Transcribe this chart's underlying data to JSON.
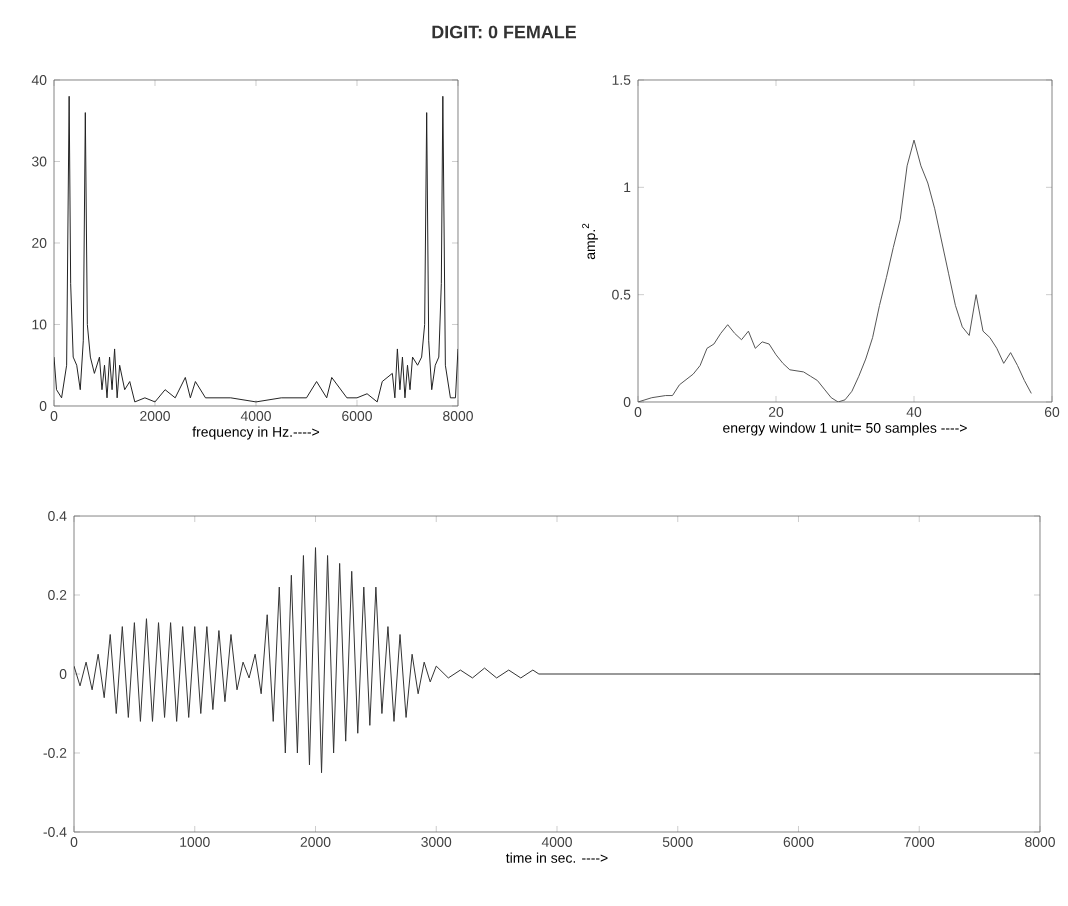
{
  "chart_data": [
    {
      "type": "other",
      "title": "DIGIT:  0    FEMALE"
    },
    {
      "type": "line",
      "xlabel": "frequency in Hz.---->",
      "xlim": [
        0,
        8000
      ],
      "ylim": [
        0,
        40
      ],
      "xticks": [
        0,
        2000,
        4000,
        6000,
        8000
      ],
      "yticks": [
        0,
        10,
        20,
        30,
        40
      ],
      "series": [
        {
          "color": "#222222",
          "x": [
            0,
            50,
            150,
            250,
            300,
            330,
            380,
            450,
            520,
            580,
            620,
            660,
            720,
            800,
            900,
            950,
            1000,
            1050,
            1100,
            1150,
            1200,
            1250,
            1300,
            1400,
            1500,
            1600,
            1800,
            2000,
            2200,
            2400,
            2600,
            2700,
            2800,
            3000,
            3500,
            4000,
            4500,
            5000,
            5200,
            5400,
            5500,
            5800,
            6000,
            6200,
            6400,
            6500,
            6700,
            6750,
            6800,
            6850,
            6900,
            6950,
            7000,
            7050,
            7100,
            7200,
            7280,
            7340,
            7380,
            7420,
            7480,
            7550,
            7620,
            7670,
            7700,
            7750,
            7850,
            7950,
            8000
          ],
          "values": [
            6,
            2,
            1,
            5,
            38,
            15,
            6,
            5,
            2,
            8,
            36,
            10,
            6,
            4,
            6,
            2,
            5,
            1,
            6,
            2,
            7,
            1,
            5,
            2,
            3,
            0.5,
            1,
            0.5,
            2,
            1,
            3.5,
            1,
            3,
            1,
            1,
            0.5,
            1,
            1,
            3,
            1,
            3.5,
            1,
            1,
            1.5,
            0.5,
            3,
            4,
            1,
            7,
            2,
            6,
            1,
            5,
            2,
            6,
            5,
            6,
            10,
            36,
            8,
            2,
            5,
            6,
            15,
            38,
            5,
            1,
            1,
            7
          ]
        }
      ]
    },
    {
      "type": "line",
      "xlabel": "energy window 1 unit= 50 samples ---->",
      "ylabel": "amp.$^{2}$",
      "xlim": [
        0,
        60
      ],
      "ylim": [
        0,
        1.5
      ],
      "xticks": [
        0,
        20,
        40,
        60
      ],
      "yticks": [
        0,
        0.5,
        1,
        1.5
      ],
      "series": [
        {
          "color": "#555555",
          "x": [
            0,
            2,
            4,
            5,
            6,
            8,
            9,
            10,
            11,
            12,
            13,
            14,
            15,
            16,
            17,
            18,
            19,
            20,
            21,
            22,
            24,
            25,
            26,
            27,
            28,
            29,
            30,
            31,
            32,
            33,
            34,
            35,
            36,
            37,
            38,
            39,
            40,
            41,
            42,
            43,
            44,
            45,
            46,
            47,
            48,
            49,
            50,
            51,
            52,
            53,
            54,
            55,
            56,
            57
          ],
          "values": [
            0,
            0.02,
            0.03,
            0.03,
            0.08,
            0.13,
            0.17,
            0.25,
            0.27,
            0.32,
            0.36,
            0.32,
            0.29,
            0.33,
            0.25,
            0.28,
            0.27,
            0.22,
            0.18,
            0.15,
            0.14,
            0.12,
            0.1,
            0.06,
            0.02,
            0,
            0.01,
            0.05,
            0.12,
            0.2,
            0.3,
            0.45,
            0.58,
            0.72,
            0.85,
            1.1,
            1.22,
            1.1,
            1.02,
            0.9,
            0.75,
            0.6,
            0.45,
            0.35,
            0.31,
            0.5,
            0.33,
            0.3,
            0.25,
            0.18,
            0.23,
            0.17,
            0.1,
            0.04
          ]
        }
      ]
    },
    {
      "type": "line",
      "xlabel": "time in sec. ---->",
      "xlim": [
        0,
        8000
      ],
      "ylim": [
        -0.4,
        0.4
      ],
      "xticks": [
        0,
        1000,
        2000,
        3000,
        4000,
        5000,
        6000,
        7000,
        8000
      ],
      "yticks": [
        -0.4,
        -0.2,
        0,
        0.2,
        0.4
      ],
      "series": [
        {
          "color": "#333333",
          "x": [
            0,
            50,
            100,
            150,
            200,
            250,
            300,
            350,
            400,
            450,
            500,
            550,
            600,
            650,
            700,
            750,
            800,
            850,
            900,
            950,
            1000,
            1050,
            1100,
            1150,
            1200,
            1250,
            1300,
            1350,
            1400,
            1450,
            1500,
            1550,
            1600,
            1650,
            1700,
            1750,
            1800,
            1850,
            1900,
            1950,
            2000,
            2050,
            2100,
            2150,
            2200,
            2250,
            2300,
            2350,
            2400,
            2450,
            2500,
            2550,
            2600,
            2650,
            2700,
            2750,
            2800,
            2850,
            2900,
            2950,
            3000,
            3100,
            3200,
            3300,
            3400,
            3500,
            3600,
            3700,
            3800,
            3850,
            8000
          ],
          "values": [
            0.02,
            -0.03,
            0.03,
            -0.04,
            0.05,
            -0.06,
            0.1,
            -0.1,
            0.12,
            -0.11,
            0.13,
            -0.12,
            0.14,
            -0.12,
            0.13,
            -0.11,
            0.13,
            -0.12,
            0.12,
            -0.11,
            0.12,
            -0.1,
            0.12,
            -0.09,
            0.11,
            -0.07,
            0.1,
            -0.04,
            0.03,
            -0.01,
            0.05,
            -0.05,
            0.15,
            -0.12,
            0.22,
            -0.2,
            0.25,
            -0.2,
            0.3,
            -0.23,
            0.32,
            -0.25,
            0.3,
            -0.2,
            0.28,
            -0.17,
            0.26,
            -0.15,
            0.22,
            -0.13,
            0.22,
            -0.1,
            0.12,
            -0.12,
            0.1,
            -0.11,
            0.05,
            -0.05,
            0.03,
            -0.02,
            0.02,
            -0.01,
            0.01,
            -0.01,
            0.015,
            -0.01,
            0.01,
            -0.01,
            0.01,
            0,
            0
          ]
        }
      ]
    }
  ]
}
